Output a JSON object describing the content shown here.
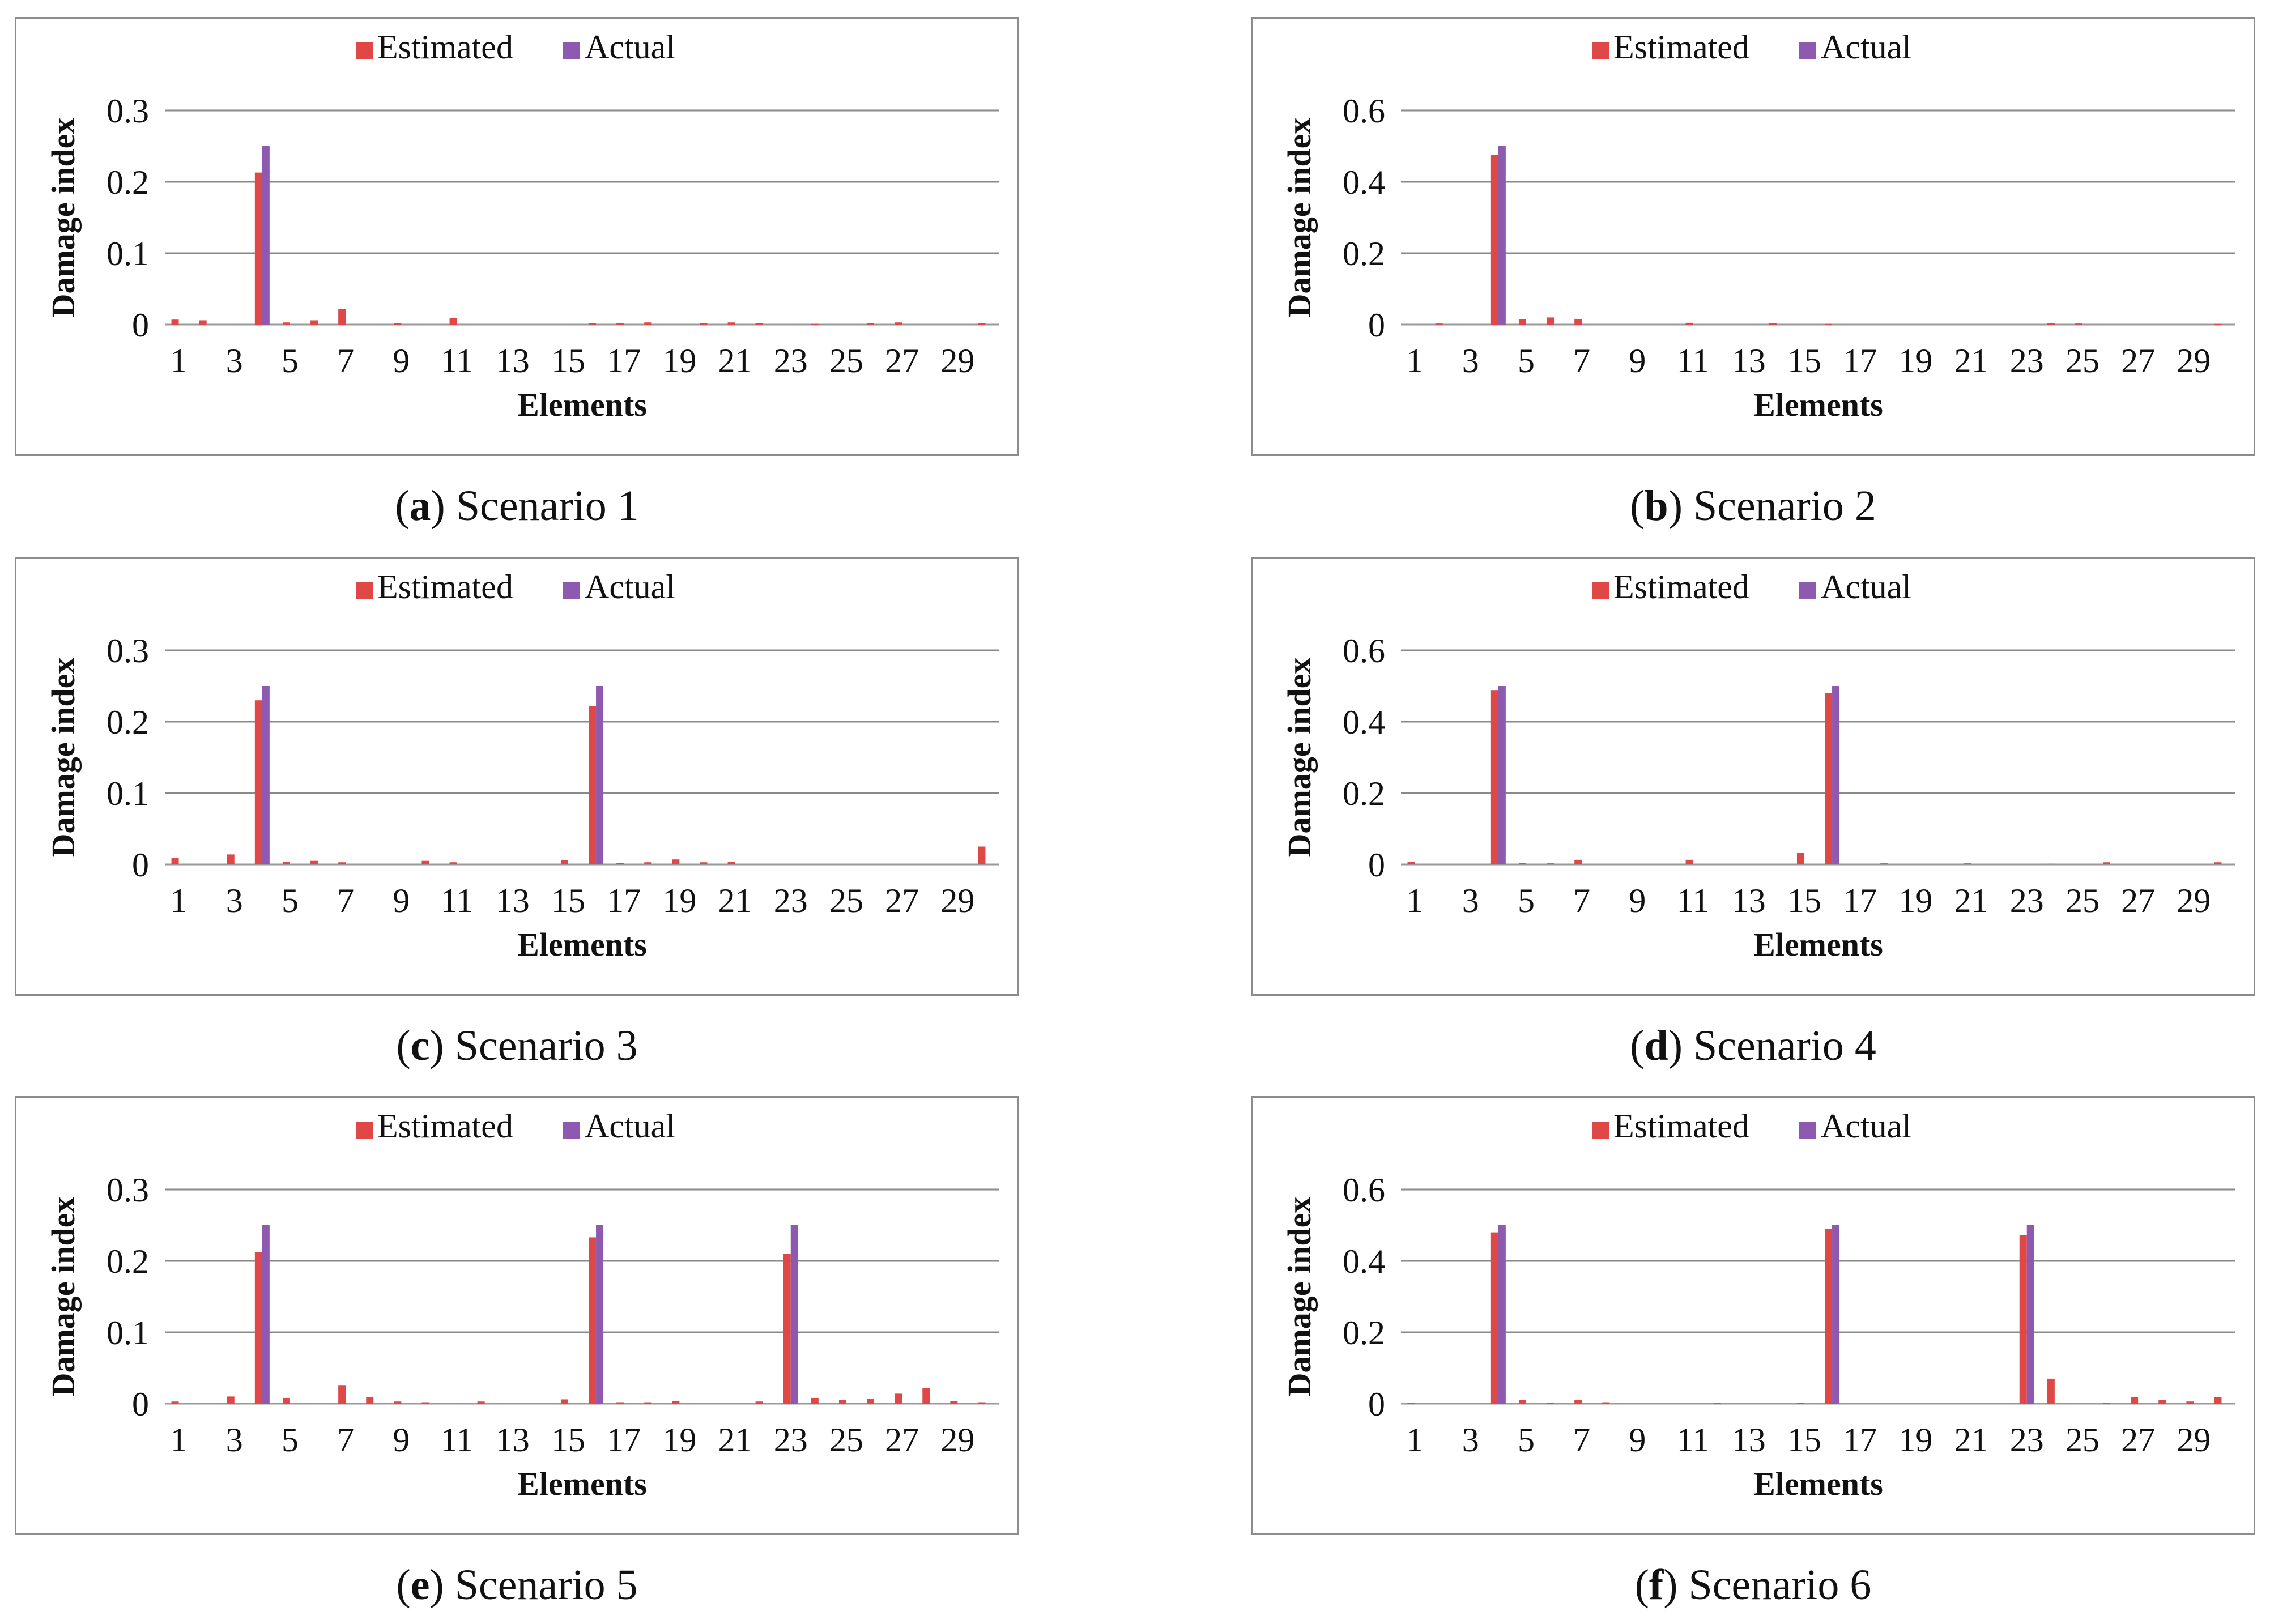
{
  "colors": {
    "estimated": "#e04848",
    "actual": "#8e5aaf",
    "grid": "#8a8a8a",
    "text": "#111111"
  },
  "chart_data": [
    {
      "type": "bar",
      "panel_letter": "a",
      "caption_text": "Scenario 1",
      "legend": [
        "Estimated",
        "Actual"
      ],
      "xlabel": "Elements",
      "ylabel": "Damage index",
      "ylim": [
        0,
        0.3
      ],
      "yticks": [
        "0",
        "0.1",
        "0.2",
        "0.3"
      ],
      "ytick_values": [
        0,
        0.1,
        0.2,
        0.3
      ],
      "xtick_labels": [
        "1",
        "3",
        "5",
        "7",
        "9",
        "11",
        "13",
        "15",
        "17",
        "19",
        "21",
        "23",
        "25",
        "27",
        "29"
      ],
      "categories": [
        1,
        2,
        3,
        4,
        5,
        6,
        7,
        8,
        9,
        10,
        11,
        12,
        13,
        14,
        15,
        16,
        17,
        18,
        19,
        20,
        21,
        22,
        23,
        24,
        25,
        26,
        27,
        28,
        29,
        30
      ],
      "series": [
        {
          "name": "Estimated",
          "values": [
            0.007,
            0.006,
            0,
            0.213,
            0.003,
            0.006,
            0.022,
            0,
            0.002,
            0,
            0.009,
            0,
            0,
            0,
            0,
            0.002,
            0.002,
            0.003,
            0,
            0.002,
            0.003,
            0.002,
            0,
            0.001,
            0,
            0.002,
            0.003,
            0,
            0,
            0.002
          ]
        },
        {
          "name": "Actual",
          "values": [
            0,
            0,
            0,
            0.25,
            0,
            0,
            0,
            0,
            0,
            0,
            0,
            0,
            0,
            0,
            0,
            0,
            0,
            0,
            0,
            0,
            0,
            0,
            0,
            0,
            0,
            0,
            0,
            0,
            0,
            0
          ]
        }
      ]
    },
    {
      "type": "bar",
      "panel_letter": "b",
      "caption_text": "Scenario 2",
      "legend": [
        "Estimated",
        "Actual"
      ],
      "xlabel": "Elements",
      "ylabel": "Damage index",
      "ylim": [
        0,
        0.6
      ],
      "yticks": [
        "0",
        "0.2",
        "0.4",
        "0.6"
      ],
      "ytick_values": [
        0,
        0.2,
        0.4,
        0.6
      ],
      "xtick_labels": [
        "1",
        "3",
        "5",
        "7",
        "9",
        "11",
        "13",
        "15",
        "17",
        "19",
        "21",
        "23",
        "25",
        "27",
        "29"
      ],
      "categories": [
        1,
        2,
        3,
        4,
        5,
        6,
        7,
        8,
        9,
        10,
        11,
        12,
        13,
        14,
        15,
        16,
        17,
        18,
        19,
        20,
        21,
        22,
        23,
        24,
        25,
        26,
        27,
        28,
        29,
        30
      ],
      "series": [
        {
          "name": "Estimated",
          "values": [
            0,
            0.003,
            0,
            0.476,
            0.015,
            0.02,
            0.016,
            0,
            0,
            0,
            0.005,
            0,
            0,
            0.004,
            0,
            0.002,
            0,
            0,
            0,
            0,
            0,
            0,
            0,
            0.004,
            0.003,
            0,
            0,
            0,
            0,
            0.002
          ]
        },
        {
          "name": "Actual",
          "values": [
            0,
            0,
            0,
            0.5,
            0,
            0,
            0,
            0,
            0,
            0,
            0,
            0,
            0,
            0,
            0,
            0,
            0,
            0,
            0,
            0,
            0,
            0,
            0,
            0,
            0,
            0,
            0,
            0,
            0,
            0
          ]
        }
      ]
    },
    {
      "type": "bar",
      "panel_letter": "c",
      "caption_text": "Scenario 3",
      "legend": [
        "Estimated",
        "Actual"
      ],
      "xlabel": "Elements",
      "ylabel": "Damage index",
      "ylim": [
        0,
        0.3
      ],
      "yticks": [
        "0",
        "0.1",
        "0.2",
        "0.3"
      ],
      "ytick_values": [
        0,
        0.1,
        0.2,
        0.3
      ],
      "xtick_labels": [
        "1",
        "3",
        "5",
        "7",
        "9",
        "11",
        "13",
        "15",
        "17",
        "19",
        "21",
        "23",
        "25",
        "27",
        "29"
      ],
      "categories": [
        1,
        2,
        3,
        4,
        5,
        6,
        7,
        8,
        9,
        10,
        11,
        12,
        13,
        14,
        15,
        16,
        17,
        18,
        19,
        20,
        21,
        22,
        23,
        24,
        25,
        26,
        27,
        28,
        29,
        30
      ],
      "series": [
        {
          "name": "Estimated",
          "values": [
            0.009,
            0,
            0.014,
            0.23,
            0.004,
            0.005,
            0.003,
            0,
            0,
            0.005,
            0.003,
            0,
            0,
            0,
            0.006,
            0.222,
            0.002,
            0.003,
            0.007,
            0.003,
            0.004,
            0,
            0,
            0,
            0,
            0,
            0,
            0,
            0,
            0.025
          ]
        },
        {
          "name": "Actual",
          "values": [
            0,
            0,
            0,
            0.25,
            0,
            0,
            0,
            0,
            0,
            0,
            0,
            0,
            0,
            0,
            0,
            0.25,
            0,
            0,
            0,
            0,
            0,
            0,
            0,
            0,
            0,
            0,
            0,
            0,
            0,
            0
          ]
        }
      ]
    },
    {
      "type": "bar",
      "panel_letter": "d",
      "caption_text": "Scenario 4",
      "legend": [
        "Estimated",
        "Actual"
      ],
      "xlabel": "Elements",
      "ylabel": "Damage index",
      "ylim": [
        0,
        0.6
      ],
      "yticks": [
        "0",
        "0.2",
        "0.4",
        "0.6"
      ],
      "ytick_values": [
        0,
        0.2,
        0.4,
        0.6
      ],
      "xtick_labels": [
        "1",
        "3",
        "5",
        "7",
        "9",
        "11",
        "13",
        "15",
        "17",
        "19",
        "21",
        "23",
        "25",
        "27",
        "29"
      ],
      "categories": [
        1,
        2,
        3,
        4,
        5,
        6,
        7,
        8,
        9,
        10,
        11,
        12,
        13,
        14,
        15,
        16,
        17,
        18,
        19,
        20,
        21,
        22,
        23,
        24,
        25,
        26,
        27,
        28,
        29,
        30
      ],
      "series": [
        {
          "name": "Estimated",
          "values": [
            0.008,
            0,
            0,
            0.487,
            0.004,
            0.003,
            0.013,
            0,
            0,
            0,
            0.013,
            0,
            0,
            0,
            0.033,
            0.48,
            0,
            0.003,
            0,
            0,
            0.003,
            0,
            0,
            0.002,
            0,
            0.006,
            0,
            0,
            0,
            0.006
          ]
        },
        {
          "name": "Actual",
          "values": [
            0,
            0,
            0,
            0.5,
            0,
            0,
            0,
            0,
            0,
            0,
            0,
            0,
            0,
            0,
            0,
            0.5,
            0,
            0,
            0,
            0,
            0,
            0,
            0,
            0,
            0,
            0,
            0,
            0,
            0,
            0
          ]
        }
      ]
    },
    {
      "type": "bar",
      "panel_letter": "e",
      "caption_text": "Scenario 5",
      "legend": [
        "Estimated",
        "Actual"
      ],
      "xlabel": "Elements",
      "ylabel": "Damage index",
      "ylim": [
        0,
        0.3
      ],
      "yticks": [
        "0",
        "0.1",
        "0.2",
        "0.3"
      ],
      "ytick_values": [
        0,
        0.1,
        0.2,
        0.3
      ],
      "xtick_labels": [
        "1",
        "3",
        "5",
        "7",
        "9",
        "11",
        "13",
        "15",
        "17",
        "19",
        "21",
        "23",
        "25",
        "27",
        "29"
      ],
      "categories": [
        1,
        2,
        3,
        4,
        5,
        6,
        7,
        8,
        9,
        10,
        11,
        12,
        13,
        14,
        15,
        16,
        17,
        18,
        19,
        20,
        21,
        22,
        23,
        24,
        25,
        26,
        27,
        28,
        29,
        30
      ],
      "series": [
        {
          "name": "Estimated",
          "values": [
            0.003,
            0,
            0.01,
            0.212,
            0.008,
            0,
            0.026,
            0.009,
            0.003,
            0.002,
            0,
            0.003,
            0,
            0,
            0.006,
            0.233,
            0.002,
            0.002,
            0.004,
            0,
            0,
            0.003,
            0.21,
            0.008,
            0.005,
            0.007,
            0.014,
            0.022,
            0.004,
            0.002
          ]
        },
        {
          "name": "Actual",
          "values": [
            0,
            0,
            0,
            0.25,
            0,
            0,
            0,
            0,
            0,
            0,
            0,
            0,
            0,
            0,
            0,
            0.25,
            0,
            0,
            0,
            0,
            0,
            0,
            0.25,
            0,
            0,
            0,
            0,
            0,
            0,
            0
          ]
        }
      ]
    },
    {
      "type": "bar",
      "panel_letter": "f",
      "caption_text": "Scenario 6",
      "legend": [
        "Estimated",
        "Actual"
      ],
      "xlabel": "Elements",
      "ylabel": "Damage index",
      "ylim": [
        0,
        0.6
      ],
      "yticks": [
        "0",
        "0.2",
        "0.4",
        "0.6"
      ],
      "ytick_values": [
        0,
        0.2,
        0.4,
        0.6
      ],
      "xtick_labels": [
        "1",
        "3",
        "5",
        "7",
        "9",
        "11",
        "13",
        "15",
        "17",
        "19",
        "21",
        "23",
        "25",
        "27",
        "29"
      ],
      "categories": [
        1,
        2,
        3,
        4,
        5,
        6,
        7,
        8,
        9,
        10,
        11,
        12,
        13,
        14,
        15,
        16,
        17,
        18,
        19,
        20,
        21,
        22,
        23,
        24,
        25,
        26,
        27,
        28,
        29,
        30
      ],
      "series": [
        {
          "name": "Estimated",
          "values": [
            0.002,
            0,
            0,
            0.48,
            0.01,
            0.003,
            0.01,
            0.004,
            0,
            0,
            0,
            0.002,
            0,
            0,
            0.002,
            0.49,
            0,
            0,
            0,
            0,
            0,
            0,
            0.472,
            0.07,
            0,
            0.002,
            0.018,
            0.01,
            0.006,
            0.018
          ]
        },
        {
          "name": "Actual",
          "values": [
            0,
            0,
            0,
            0.5,
            0,
            0,
            0,
            0,
            0,
            0,
            0,
            0,
            0,
            0,
            0,
            0.5,
            0,
            0,
            0,
            0,
            0,
            0,
            0.5,
            0,
            0,
            0,
            0,
            0,
            0,
            0
          ]
        }
      ]
    }
  ]
}
